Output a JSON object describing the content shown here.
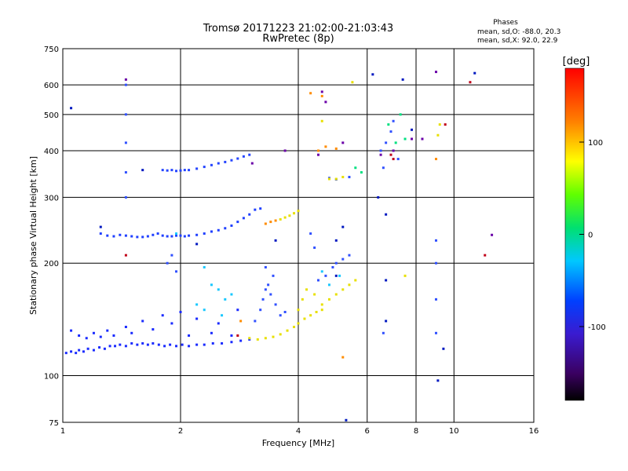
{
  "chart_data": {
    "type": "scatter",
    "title_line1": "Tromsø 20171223 21:02:00-21:03:43",
    "title_line2": "RwPretec (8p)",
    "phase_title": "Phases",
    "phase_line1": "mean, sd,O: -88.0, 20.3",
    "phase_line2": "mean, sd,X:  92.0, 22.9",
    "xlabel": "Frequency [MHz]",
    "ylabel": "Stationary phase Virtual Height [km]",
    "x_scale": "log",
    "y_scale": "log",
    "xlim": [
      1,
      16
    ],
    "ylim": [
      75,
      750
    ],
    "x_ticks": [
      1,
      2,
      4,
      6,
      8,
      10,
      16
    ],
    "y_ticks": [
      75,
      100,
      200,
      300,
      400,
      500,
      600,
      750
    ],
    "grid": true,
    "colorbar": {
      "label": "[deg]",
      "range": [
        -180,
        180
      ],
      "ticks": [
        100,
        0,
        -100
      ],
      "colormap": "rainbow"
    },
    "series": [
      {
        "color_hex": "#1a2bff",
        "phase": -95,
        "points": [
          [
            1.02,
            115
          ],
          [
            1.05,
            116
          ],
          [
            1.08,
            115
          ],
          [
            1.1,
            117
          ],
          [
            1.13,
            116
          ],
          [
            1.16,
            118
          ],
          [
            1.2,
            117
          ],
          [
            1.24,
            119
          ],
          [
            1.28,
            118
          ],
          [
            1.32,
            120
          ],
          [
            1.36,
            120
          ],
          [
            1.4,
            121
          ],
          [
            1.45,
            120
          ],
          [
            1.5,
            122
          ],
          [
            1.55,
            121
          ],
          [
            1.6,
            122
          ],
          [
            1.65,
            121
          ],
          [
            1.7,
            122
          ],
          [
            1.76,
            121
          ],
          [
            1.82,
            120
          ],
          [
            1.88,
            121
          ],
          [
            1.95,
            120
          ],
          [
            2.02,
            121
          ],
          [
            2.1,
            120
          ],
          [
            2.2,
            121
          ],
          [
            2.3,
            121
          ],
          [
            2.42,
            122
          ],
          [
            2.55,
            122
          ],
          [
            2.7,
            123
          ],
          [
            2.85,
            124
          ],
          [
            3.0,
            125
          ],
          [
            1.1,
            128
          ],
          [
            1.2,
            130
          ],
          [
            1.3,
            132
          ],
          [
            1.45,
            135
          ],
          [
            1.6,
            140
          ],
          [
            1.8,
            145
          ],
          [
            2.0,
            148
          ],
          [
            2.2,
            142
          ],
          [
            2.5,
            138
          ],
          [
            2.8,
            150
          ],
          [
            1.05,
            132
          ],
          [
            1.15,
            126
          ],
          [
            1.25,
            127
          ],
          [
            1.35,
            128
          ],
          [
            1.5,
            130
          ],
          [
            1.7,
            133
          ],
          [
            1.9,
            138
          ],
          [
            2.1,
            128
          ],
          [
            2.4,
            130
          ],
          [
            2.7,
            128
          ]
        ]
      },
      {
        "color_hex": "#2040ff",
        "phase": -90,
        "points": [
          [
            1.25,
            240
          ],
          [
            1.3,
            237
          ],
          [
            1.35,
            236
          ],
          [
            1.4,
            238
          ],
          [
            1.45,
            237
          ],
          [
            1.5,
            236
          ],
          [
            1.55,
            235
          ],
          [
            1.6,
            235
          ],
          [
            1.65,
            236
          ],
          [
            1.7,
            238
          ],
          [
            1.75,
            240
          ],
          [
            1.8,
            237
          ],
          [
            1.85,
            236
          ],
          [
            1.9,
            236
          ],
          [
            1.95,
            237
          ],
          [
            2.0,
            237
          ],
          [
            2.05,
            236
          ],
          [
            2.1,
            237
          ],
          [
            2.2,
            238
          ],
          [
            2.3,
            240
          ],
          [
            2.4,
            243
          ],
          [
            2.5,
            245
          ],
          [
            2.6,
            248
          ],
          [
            2.7,
            252
          ],
          [
            2.8,
            258
          ],
          [
            2.9,
            264
          ],
          [
            3.0,
            270
          ],
          [
            3.1,
            278
          ],
          [
            3.2,
            280
          ]
        ]
      },
      {
        "color_hex": "#2545ff",
        "phase": -85,
        "points": [
          [
            1.8,
            355
          ],
          [
            1.85,
            354
          ],
          [
            1.9,
            355
          ],
          [
            1.95,
            353
          ],
          [
            2.0,
            354
          ],
          [
            2.05,
            355
          ],
          [
            2.1,
            355
          ],
          [
            2.2,
            358
          ],
          [
            2.3,
            362
          ],
          [
            2.4,
            366
          ],
          [
            2.5,
            370
          ],
          [
            2.6,
            373
          ],
          [
            2.7,
            377
          ],
          [
            2.8,
            381
          ],
          [
            2.9,
            386
          ],
          [
            3.0,
            390
          ]
        ]
      },
      {
        "color_hex": "#3050ff",
        "phase": -80,
        "points": [
          [
            3.1,
            140
          ],
          [
            3.2,
            150
          ],
          [
            3.25,
            160
          ],
          [
            3.3,
            170
          ],
          [
            3.35,
            175
          ],
          [
            3.4,
            165
          ],
          [
            3.5,
            155
          ],
          [
            3.6,
            145
          ],
          [
            3.7,
            148
          ],
          [
            3.45,
            185
          ],
          [
            3.3,
            195
          ],
          [
            1.85,
            200
          ],
          [
            1.9,
            210
          ],
          [
            1.95,
            190
          ],
          [
            4.5,
            180
          ],
          [
            4.7,
            185
          ],
          [
            4.9,
            195
          ],
          [
            5.0,
            200
          ],
          [
            5.2,
            205
          ],
          [
            5.4,
            210
          ],
          [
            4.3,
            240
          ],
          [
            4.4,
            220
          ],
          [
            6.5,
            400
          ],
          [
            6.7,
            420
          ],
          [
            6.9,
            450
          ],
          [
            7.0,
            480
          ],
          [
            7.2,
            380
          ],
          [
            6.6,
            360
          ],
          [
            5.4,
            340
          ],
          [
            5.0,
            335
          ],
          [
            4.8,
            338
          ],
          [
            9.0,
            230
          ],
          [
            9.0,
            200
          ],
          [
            9.0,
            160
          ],
          [
            9.0,
            130
          ],
          [
            6.6,
            130
          ],
          [
            1.45,
            600
          ],
          [
            1.45,
            500
          ],
          [
            1.45,
            420
          ],
          [
            1.45,
            350
          ],
          [
            1.45,
            300
          ]
        ]
      },
      {
        "color_hex": "#18c8ff",
        "phase": -20,
        "points": [
          [
            2.4,
            175
          ],
          [
            2.5,
            170
          ],
          [
            2.6,
            160
          ],
          [
            2.7,
            165
          ],
          [
            2.3,
            150
          ],
          [
            2.2,
            155
          ],
          [
            2.55,
            145
          ],
          [
            1.95,
            240
          ],
          [
            2.3,
            195
          ],
          [
            4.6,
            190
          ],
          [
            4.8,
            175
          ],
          [
            5.1,
            185
          ]
        ]
      },
      {
        "color_hex": "#00e080",
        "phase": 30,
        "points": [
          [
            5.6,
            360
          ],
          [
            5.8,
            350
          ],
          [
            6.8,
            470
          ],
          [
            7.1,
            420
          ],
          [
            7.5,
            430
          ],
          [
            7.3,
            500
          ]
        ]
      },
      {
        "color_hex": "#e8e000",
        "phase": 95,
        "points": [
          [
            3.0,
            126
          ],
          [
            3.15,
            125
          ],
          [
            3.3,
            126
          ],
          [
            3.45,
            127
          ],
          [
            3.6,
            129
          ],
          [
            3.75,
            132
          ],
          [
            3.9,
            135
          ],
          [
            4.0,
            138
          ],
          [
            4.15,
            142
          ],
          [
            4.3,
            145
          ],
          [
            4.45,
            148
          ],
          [
            4.6,
            150
          ],
          [
            4.0,
            150
          ],
          [
            4.1,
            160
          ],
          [
            4.2,
            170
          ],
          [
            4.4,
            165
          ],
          [
            4.6,
            155
          ],
          [
            4.8,
            160
          ],
          [
            5.0,
            165
          ],
          [
            5.2,
            170
          ],
          [
            5.4,
            175
          ],
          [
            5.6,
            180
          ],
          [
            3.6,
            262
          ],
          [
            3.7,
            265
          ],
          [
            3.8,
            268
          ],
          [
            3.9,
            272
          ],
          [
            4.0,
            276
          ],
          [
            4.8,
            336
          ],
          [
            5.0,
            336
          ],
          [
            5.2,
            340
          ],
          [
            5.5,
            610
          ],
          [
            4.6,
            480
          ],
          [
            9.2,
            470
          ],
          [
            9.1,
            440
          ],
          [
            7.5,
            185
          ]
        ]
      },
      {
        "color_hex": "#ff8c00",
        "phase": 125,
        "points": [
          [
            3.3,
            255
          ],
          [
            3.4,
            258
          ],
          [
            3.5,
            260
          ],
          [
            2.85,
            140
          ],
          [
            4.5,
            400
          ],
          [
            4.7,
            410
          ],
          [
            5.0,
            405
          ],
          [
            4.3,
            570
          ],
          [
            4.6,
            560
          ],
          [
            5.2,
            112
          ],
          [
            9.0,
            380
          ]
        ]
      },
      {
        "color_hex": "#c00018",
        "phase": 170,
        "points": [
          [
            2.8,
            128
          ],
          [
            7.0,
            380
          ],
          [
            6.9,
            390
          ],
          [
            9.5,
            470
          ],
          [
            12.0,
            210
          ],
          [
            11.0,
            610
          ],
          [
            1.45,
            210
          ]
        ]
      },
      {
        "color_hex": "#6a00a8",
        "phase": -140,
        "points": [
          [
            1.45,
            620
          ],
          [
            4.7,
            540
          ],
          [
            5.2,
            420
          ],
          [
            6.5,
            390
          ],
          [
            7.0,
            400
          ],
          [
            7.8,
            430
          ],
          [
            8.3,
            430
          ],
          [
            9.0,
            650
          ],
          [
            12.5,
            238
          ],
          [
            3.7,
            400
          ],
          [
            3.05,
            370
          ],
          [
            4.5,
            390
          ],
          [
            4.6,
            575
          ]
        ]
      },
      {
        "color_hex": "#0018c0",
        "phase": -115,
        "points": [
          [
            1.05,
            520
          ],
          [
            1.25,
            250
          ],
          [
            1.6,
            355
          ],
          [
            2.2,
            225
          ],
          [
            3.5,
            230
          ],
          [
            5.0,
            230
          ],
          [
            5.0,
            185
          ],
          [
            5.2,
            250
          ],
          [
            6.4,
            300
          ],
          [
            6.7,
            270
          ],
          [
            6.7,
            180
          ],
          [
            6.7,
            140
          ],
          [
            9.1,
            97
          ],
          [
            9.4,
            118
          ],
          [
            5.3,
            76
          ],
          [
            6.2,
            640
          ],
          [
            7.4,
            620
          ],
          [
            11.3,
            645
          ],
          [
            7.8,
            455
          ]
        ]
      }
    ]
  }
}
